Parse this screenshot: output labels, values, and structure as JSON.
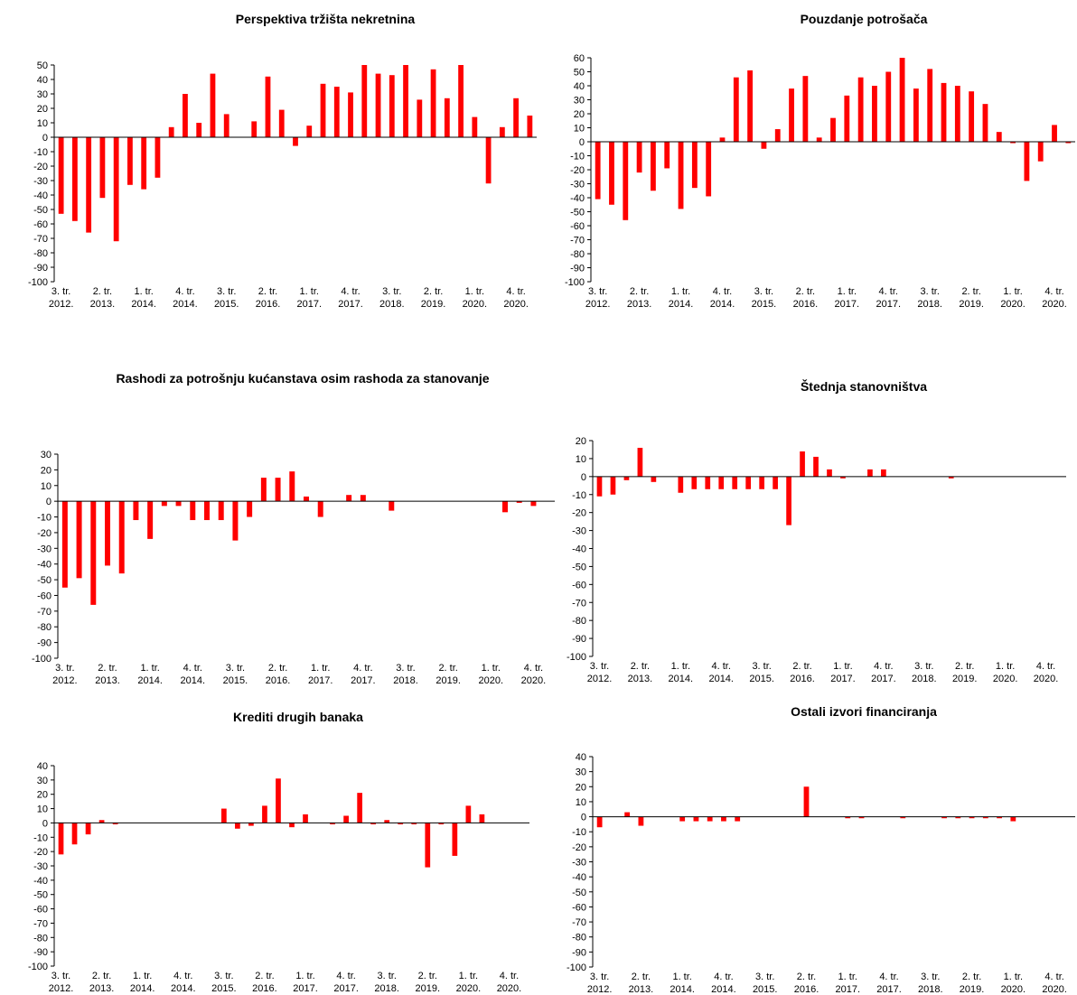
{
  "chart_data": [
    {
      "type": "bar",
      "title": "Perspektiva tržišta nekretnina",
      "ylim": [
        -100,
        50
      ],
      "yticks": [
        50,
        40,
        30,
        20,
        10,
        0,
        -10,
        -20,
        -30,
        -40,
        -50,
        -60,
        -70,
        -80,
        -90,
        -100
      ],
      "color": "#ff0000",
      "grid": false,
      "xtick_labels": [
        [
          "3. tr.",
          "2012."
        ],
        [
          "2. tr.",
          "2013."
        ],
        [
          "1. tr.",
          "2014."
        ],
        [
          "4. tr.",
          "2014."
        ],
        [
          "3. tr.",
          "2015."
        ],
        [
          "2. tr.",
          "2016."
        ],
        [
          "1. tr.",
          "2017."
        ],
        [
          "4. tr.",
          "2017."
        ],
        [
          "3. tr.",
          "2018."
        ],
        [
          "2. tr.",
          "2019."
        ],
        [
          "1. tr.",
          "2020."
        ],
        [
          "4. tr.",
          "2020."
        ]
      ],
      "values": [
        -53,
        -58,
        -66,
        -42,
        -72,
        -33,
        -36,
        -28,
        7,
        30,
        10,
        44,
        16,
        0,
        11,
        42,
        19,
        -6,
        8,
        37,
        35,
        31,
        50,
        44,
        43,
        50,
        26,
        47,
        27,
        50,
        14,
        -32,
        7,
        27,
        15
      ]
    },
    {
      "type": "bar",
      "title": "Pouzdanje potrošača",
      "ylim": [
        -100,
        60
      ],
      "yticks": [
        60,
        50,
        40,
        30,
        20,
        10,
        0,
        -10,
        -20,
        -30,
        -40,
        -50,
        -60,
        -70,
        -80,
        -90,
        -100
      ],
      "color": "#ff0000",
      "grid": false,
      "xtick_labels": [
        [
          "3. tr.",
          "2012."
        ],
        [
          "2. tr.",
          "2013."
        ],
        [
          "1. tr.",
          "2014."
        ],
        [
          "4. tr.",
          "2014."
        ],
        [
          "3. tr.",
          "2015."
        ],
        [
          "2. tr.",
          "2016."
        ],
        [
          "1. tr.",
          "2017."
        ],
        [
          "4. tr.",
          "2017."
        ],
        [
          "3. tr.",
          "2018."
        ],
        [
          "2. tr.",
          "2019."
        ],
        [
          "1. tr.",
          "2020."
        ],
        [
          "4. tr.",
          "2020."
        ]
      ],
      "values": [
        -41,
        -45,
        -56,
        -22,
        -35,
        -19,
        -48,
        -33,
        -39,
        3,
        46,
        51,
        -5,
        9,
        38,
        47,
        3,
        17,
        33,
        46,
        40,
        50,
        60,
        38,
        52,
        42,
        40,
        36,
        27,
        7,
        -1,
        -28,
        -14,
        12,
        -1
      ]
    },
    {
      "type": "bar",
      "title": "Rashodi za potrošnju kućanstava osim rashoda za stanovanje",
      "ylim": [
        -100,
        30
      ],
      "yticks": [
        30,
        20,
        10,
        0,
        -10,
        -20,
        -30,
        -40,
        -50,
        -60,
        -70,
        -80,
        -90,
        -100
      ],
      "color": "#ff0000",
      "grid": false,
      "xtick_labels": [
        [
          "3. tr.",
          "2012."
        ],
        [
          "2. tr.",
          "2013."
        ],
        [
          "1. tr.",
          "2014."
        ],
        [
          "4. tr.",
          "2014."
        ],
        [
          "3. tr.",
          "2015."
        ],
        [
          "2. tr.",
          "2016."
        ],
        [
          "1. tr.",
          "2017."
        ],
        [
          "4. tr.",
          "2017."
        ],
        [
          "3. tr.",
          "2018."
        ],
        [
          "2. tr.",
          "2019."
        ],
        [
          "1. tr.",
          "2020."
        ],
        [
          "4. tr.",
          "2020."
        ]
      ],
      "values": [
        -55,
        -49,
        -66,
        -41,
        -46,
        -12,
        -24,
        -3,
        -3,
        -12,
        -12,
        -12,
        -25,
        -10,
        15,
        15,
        19,
        3,
        -10,
        0,
        4,
        4,
        0,
        -6,
        0,
        0,
        0,
        0,
        0,
        0,
        0,
        -7,
        -1,
        -3,
        0
      ]
    },
    {
      "type": "bar",
      "title": "Štednja stanovništva",
      "ylim": [
        -100,
        20
      ],
      "yticks": [
        20,
        10,
        0,
        -10,
        -20,
        -30,
        -40,
        -50,
        -60,
        -70,
        -80,
        -90,
        -100
      ],
      "color": "#ff0000",
      "grid": false,
      "xtick_labels": [
        [
          "3. tr.",
          "2012."
        ],
        [
          "2. tr.",
          "2013."
        ],
        [
          "1. tr.",
          "2014."
        ],
        [
          "4. tr.",
          "2014."
        ],
        [
          "3. tr.",
          "2015."
        ],
        [
          "2. tr.",
          "2016."
        ],
        [
          "1. tr.",
          "2017."
        ],
        [
          "4. tr.",
          "2017."
        ],
        [
          "3. tr.",
          "2018."
        ],
        [
          "2. tr.",
          "2019."
        ],
        [
          "1. tr.",
          "2020."
        ],
        [
          "4. tr.",
          "2020."
        ]
      ],
      "values": [
        -11,
        -10,
        -2,
        16,
        -3,
        0,
        -9,
        -7,
        -7,
        -7,
        -7,
        -7,
        -7,
        -7,
        -27,
        14,
        11,
        4,
        -1,
        0,
        4,
        4,
        0,
        0,
        0,
        0,
        -1,
        0,
        0,
        0,
        0,
        0,
        0,
        0,
        0
      ]
    },
    {
      "type": "bar",
      "title": "Krediti drugih banaka",
      "ylim": [
        -100,
        40
      ],
      "yticks": [
        40,
        30,
        20,
        10,
        0,
        -10,
        -20,
        -30,
        -40,
        -50,
        -60,
        -70,
        -80,
        -90,
        -100
      ],
      "color": "#ff0000",
      "grid": false,
      "xtick_labels": [
        [
          "3. tr.",
          "2012."
        ],
        [
          "2. tr.",
          "2013."
        ],
        [
          "1. tr.",
          "2014."
        ],
        [
          "4. tr.",
          "2014."
        ],
        [
          "3. tr.",
          "2015."
        ],
        [
          "2. tr.",
          "2016."
        ],
        [
          "1. tr.",
          "2017."
        ],
        [
          "4. tr.",
          "2017."
        ],
        [
          "3. tr.",
          "2018."
        ],
        [
          "2. tr.",
          "2019."
        ],
        [
          "1. tr.",
          "2020."
        ],
        [
          "4. tr.",
          "2020."
        ]
      ],
      "values": [
        -22,
        -15,
        -8,
        2,
        -1,
        0,
        0,
        0,
        0,
        0,
        0,
        0,
        10,
        -4,
        -2,
        12,
        31,
        -3,
        6,
        0,
        -1,
        5,
        21,
        -1,
        2,
        -1,
        -1,
        -31,
        -1,
        -23,
        12,
        6,
        0,
        0,
        0
      ]
    },
    {
      "type": "bar",
      "title": "Ostali izvori financiranja",
      "ylim": [
        -100,
        40
      ],
      "yticks": [
        40,
        30,
        20,
        10,
        0,
        -10,
        -20,
        -30,
        -40,
        -50,
        -60,
        -70,
        -80,
        -90,
        -100
      ],
      "color": "#ff0000",
      "grid": false,
      "xtick_labels": [
        [
          "3. tr.",
          "2012."
        ],
        [
          "2. tr.",
          "2013."
        ],
        [
          "1. tr.",
          "2014."
        ],
        [
          "4. tr.",
          "2014."
        ],
        [
          "3. tr.",
          "2015."
        ],
        [
          "2. tr.",
          "2016."
        ],
        [
          "1. tr.",
          "2017."
        ],
        [
          "4. tr.",
          "2017."
        ],
        [
          "3. tr.",
          "2018."
        ],
        [
          "2. tr.",
          "2019."
        ],
        [
          "1. tr.",
          "2020."
        ],
        [
          "4. tr.",
          "2020."
        ]
      ],
      "values": [
        -7,
        0,
        3,
        -6,
        0,
        0,
        -3,
        -3,
        -3,
        -3,
        -3,
        0,
        0,
        0,
        0,
        20,
        0,
        0,
        -1,
        -1,
        0,
        0,
        -1,
        0,
        0,
        -1,
        -1,
        -1,
        -1,
        -1,
        -3,
        0,
        0,
        0,
        0
      ]
    }
  ]
}
